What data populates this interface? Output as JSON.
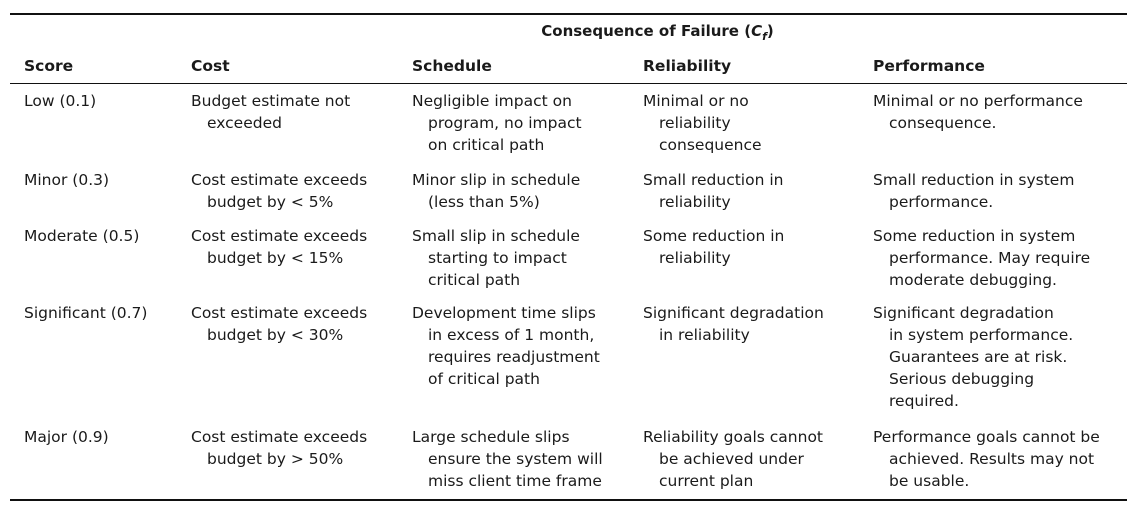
{
  "table": {
    "group_header_prefix": "Consequence of Failure (",
    "group_header_symbol": "C",
    "group_header_subscript": "f",
    "group_header_suffix": ")",
    "columns": [
      "Score",
      "Cost",
      "Schedule",
      "Reliability",
      "Performance"
    ],
    "rows": [
      {
        "score": "Low (0.1)",
        "cost": [
          "Budget estimate not",
          "exceeded"
        ],
        "schedule": [
          "Negligible impact on",
          "program, no impact",
          "on critical path"
        ],
        "reliability": [
          "Minimal or no",
          "reliability",
          "consequence"
        ],
        "performance": [
          "Minimal or no performance",
          "consequence."
        ]
      },
      {
        "score": "Minor (0.3)",
        "cost": [
          "Cost estimate exceeds",
          "budget by < 5%"
        ],
        "schedule": [
          "Minor slip in schedule",
          "(less than 5%)"
        ],
        "reliability": [
          "Small reduction in",
          "reliability"
        ],
        "performance": [
          "Small reduction in system",
          "performance."
        ]
      },
      {
        "score": "Moderate (0.5)",
        "cost": [
          "Cost estimate exceeds",
          "budget by < 15%"
        ],
        "schedule": [
          "Small slip in schedule",
          "starting to impact",
          "critical path"
        ],
        "reliability": [
          "Some reduction in",
          "reliability"
        ],
        "performance": [
          "Some reduction in system",
          "performance. May require",
          "moderate debugging."
        ]
      },
      {
        "score": "Significant (0.7)",
        "cost": [
          "Cost estimate exceeds",
          "budget by < 30%"
        ],
        "schedule": [
          "Development time slips",
          "in excess of 1 month,",
          "requires readjustment",
          "of critical path"
        ],
        "reliability": [
          "Significant degradation",
          "in reliability"
        ],
        "performance": [
          "Significant degradation",
          "in system performance.",
          "Guarantees are at risk.",
          "Serious debugging",
          "required."
        ]
      },
      {
        "score": "Major (0.9)",
        "cost": [
          "Cost estimate exceeds",
          "budget by > 50%"
        ],
        "schedule": [
          "Large schedule slips",
          "ensure the system will",
          "miss client time frame"
        ],
        "reliability": [
          "Reliability goals cannot",
          "be achieved under",
          "current plan"
        ],
        "performance": [
          "Performance goals cannot be",
          "achieved. Results may not",
          "be usable."
        ]
      }
    ]
  }
}
